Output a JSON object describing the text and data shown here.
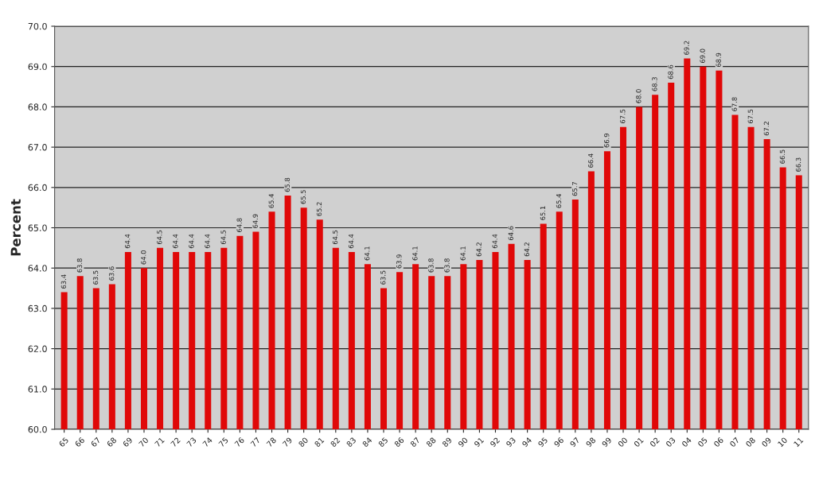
{
  "chart_data": {
    "type": "bar",
    "ylabel": "Percent",
    "categories": [
      "65",
      "66",
      "67",
      "68",
      "69",
      "70",
      "71",
      "72",
      "73",
      "74",
      "75",
      "76",
      "77",
      "78",
      "79",
      "80",
      "81",
      "82",
      "83",
      "84",
      "85",
      "86",
      "87",
      "88",
      "89",
      "90",
      "91",
      "92",
      "93",
      "94",
      "95",
      "96",
      "97",
      "98",
      "99",
      "00",
      "01",
      "02",
      "03",
      "04",
      "05",
      "06",
      "07",
      "08",
      "09",
      "10",
      "11"
    ],
    "values": [
      63.4,
      63.8,
      63.5,
      63.6,
      64.4,
      64.0,
      64.5,
      64.4,
      64.4,
      64.4,
      64.5,
      64.8,
      64.9,
      65.4,
      65.8,
      65.5,
      65.2,
      64.5,
      64.4,
      64.1,
      63.5,
      63.9,
      64.1,
      63.8,
      63.8,
      64.1,
      64.2,
      64.4,
      64.6,
      64.2,
      65.1,
      65.4,
      65.7,
      66.4,
      66.9,
      67.5,
      68.0,
      68.3,
      68.6,
      69.2,
      69.0,
      68.9,
      67.8,
      67.5,
      67.2,
      66.5,
      66.3
    ],
    "value_labels": [
      "63.4",
      "63.8",
      "63.5",
      "63.6",
      "64.4",
      "64.0",
      "64.5",
      "64.4",
      "64.4",
      "64.4",
      "64.5",
      "64.8",
      "64.9",
      "65.4",
      "65.8",
      "65.5",
      "65.2",
      "64.5",
      "64.4",
      "64.1",
      "63.5",
      "63.9",
      "64.1",
      "63.8",
      "63.8",
      "64.1",
      "64.2",
      "64.4",
      "64.6",
      "64.2",
      "65.1",
      "65.4",
      "65.7",
      "66.4",
      "66.9",
      "67.5",
      "68.0",
      "68.3",
      "68.6",
      "69.2",
      "69.0",
      "68.9",
      "67.8",
      "67.5",
      "67.2",
      "66.5",
      "66.3"
    ],
    "color": "#e00808",
    "ylim": [
      60,
      70
    ],
    "yticks": [
      {
        "value": 60,
        "label": "60.0"
      },
      {
        "value": 61,
        "label": "61.0"
      },
      {
        "value": 62,
        "label": "62.0"
      },
      {
        "value": 63,
        "label": "63.0"
      },
      {
        "value": 64,
        "label": "64.0"
      },
      {
        "value": 65,
        "label": "65.0"
      },
      {
        "value": 66,
        "label": "66.0"
      },
      {
        "value": 67,
        "label": "67.0"
      },
      {
        "value": 68,
        "label": "68.0"
      },
      {
        "value": 69,
        "label": "69.0"
      },
      {
        "value": 70,
        "label": "70.0"
      }
    ],
    "grid": "y",
    "legend": false
  }
}
